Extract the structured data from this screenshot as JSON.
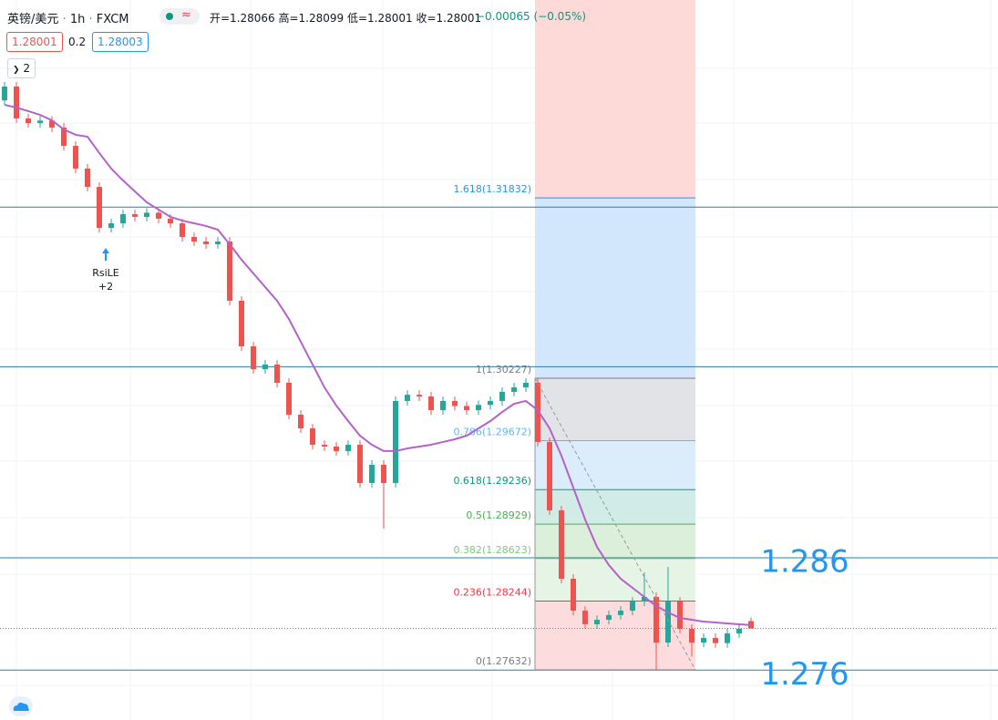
{
  "header": {
    "symbol": "英镑/美元",
    "interval": "1h",
    "source": "FXCM",
    "ohlc": "开=1.28066 高=1.28099 低=1.28001 收=1.28001",
    "change": "−0.00065 (−0.05%)",
    "bid": "1.28001",
    "spread": "0.2",
    "ask": "1.28003",
    "indicator_count": "2"
  },
  "chart_data": {
    "type": "candlestick",
    "open": [
      1.327,
      1.32823,
      1.32539,
      1.32498,
      1.3252,
      1.32458,
      1.32295,
      1.32093,
      1.3193,
      1.31565,
      1.31606,
      1.31687,
      1.31663,
      1.317,
      1.31647,
      1.31606,
      1.31484,
      1.31444,
      1.3142,
      1.31444,
      1.30917,
      1.30511,
      1.30308,
      1.30349,
      1.30187,
      1.29903,
      1.29781,
      1.29635,
      1.29619,
      1.29579,
      1.29635,
      1.29295,
      1.29457,
      1.29295,
      1.30025,
      1.3008,
      1.30065,
      1.29943,
      1.30025,
      1.2998,
      1.29943,
      1.2999,
      1.30025,
      1.30106,
      1.30146,
      1.30187,
      1.2966,
      1.29051,
      1.28443,
      1.28159,
      1.28038,
      1.28078,
      1.2812,
      1.28159,
      1.2824,
      1.28281,
      1.27875,
      1.2824,
      1.27997,
      1.27875,
      1.27916,
      1.2787,
      1.27957,
      1.28066
    ],
    "high": [
      1.32863,
      1.32863,
      1.32579,
      1.3256,
      1.3256,
      1.32498,
      1.32335,
      1.32133,
      1.3197,
      1.31646,
      1.31727,
      1.31727,
      1.3174,
      1.3174,
      1.31687,
      1.31646,
      1.31524,
      1.31484,
      1.31484,
      1.31484,
      1.30957,
      1.30551,
      1.30389,
      1.30389,
      1.30227,
      1.29943,
      1.29821,
      1.29675,
      1.29659,
      1.29675,
      1.29675,
      1.29497,
      1.29497,
      1.30065,
      1.3012,
      1.3012,
      1.30105,
      1.30065,
      1.30065,
      1.3002,
      1.3003,
      1.30065,
      1.30146,
      1.30186,
      1.30227,
      1.30227,
      1.297,
      1.29091,
      1.28483,
      1.28199,
      1.28118,
      1.2816,
      1.28199,
      1.2828,
      1.285,
      1.28321,
      1.2855,
      1.2828,
      1.28037,
      1.27956,
      1.27956,
      1.27997,
      1.28037,
      1.28099
    ],
    "low": [
      1.3266,
      1.32499,
      1.32458,
      1.32458,
      1.32418,
      1.32255,
      1.32053,
      1.3189,
      1.31525,
      1.31525,
      1.31566,
      1.31623,
      1.31623,
      1.31607,
      1.31566,
      1.31444,
      1.31404,
      1.3138,
      1.3138,
      1.30877,
      1.30471,
      1.30268,
      1.30268,
      1.30147,
      1.29863,
      1.29741,
      1.29595,
      1.29579,
      1.29539,
      1.29539,
      1.29255,
      1.29255,
      1.28889,
      1.29255,
      1.29985,
      1.30025,
      1.29903,
      1.29903,
      1.2994,
      1.29903,
      1.29903,
      1.2995,
      1.29985,
      1.30066,
      1.30106,
      1.2962,
      1.29011,
      1.28403,
      1.28119,
      1.27998,
      1.27998,
      1.28038,
      1.2808,
      1.28119,
      1.282,
      1.27632,
      1.27835,
      1.27957,
      1.2775,
      1.27835,
      1.2783,
      1.2783,
      1.27917,
      1.28001
    ],
    "close": [
      1.32823,
      1.32539,
      1.32498,
      1.3252,
      1.32458,
      1.32295,
      1.32093,
      1.3193,
      1.31565,
      1.31606,
      1.31687,
      1.31663,
      1.317,
      1.31647,
      1.31606,
      1.31484,
      1.31444,
      1.3142,
      1.31444,
      1.30917,
      1.30511,
      1.30308,
      1.30349,
      1.30187,
      1.29903,
      1.29781,
      1.29635,
      1.29619,
      1.29579,
      1.29635,
      1.29295,
      1.29457,
      1.29295,
      1.30025,
      1.3008,
      1.30065,
      1.29943,
      1.30025,
      1.2998,
      1.29943,
      1.2999,
      1.30025,
      1.30106,
      1.30146,
      1.30187,
      1.2966,
      1.29051,
      1.28443,
      1.28159,
      1.28038,
      1.28078,
      1.2812,
      1.28159,
      1.2824,
      1.28281,
      1.27875,
      1.2824,
      1.27997,
      1.27875,
      1.27916,
      1.2787,
      1.27957,
      1.27997,
      1.28001
    ],
    "up_color": "#26a69a",
    "down_color": "#ef5350",
    "ylim": [
      1.27186,
      1.33593
    ],
    "moving_average": {
      "color": "#b462c8",
      "values": [
        1.3266,
        1.32636,
        1.32604,
        1.32571,
        1.32522,
        1.32441,
        1.32393,
        1.32376,
        1.32231,
        1.32093,
        1.31987,
        1.3189,
        1.31793,
        1.31728,
        1.31663,
        1.3163,
        1.31606,
        1.31582,
        1.31549,
        1.3142,
        1.31282,
        1.3116,
        1.31038,
        1.30917,
        1.30754,
        1.30552,
        1.30349,
        1.30146,
        1.29984,
        1.29846,
        1.29716,
        1.29635,
        1.29579,
        1.29579,
        1.29603,
        1.29619,
        1.29635,
        1.2966,
        1.29684,
        1.29716,
        1.29781,
        1.29846,
        1.29927,
        1.3,
        1.30025,
        1.29943,
        1.29781,
        1.29538,
        1.29254,
        1.2897,
        1.28727,
        1.28565,
        1.28443,
        1.28362,
        1.28281,
        1.282,
        1.28143,
        1.28094,
        1.28078,
        1.28062,
        1.28054,
        1.28046,
        1.28038,
        1.2803
      ]
    },
    "signal": {
      "label": "RsiLE",
      "count": "+2"
    },
    "fibonacci": {
      "extension_fill": "#fdd9d7",
      "line_color": "#9598a1",
      "levels": [
        {
          "value": 1.31832,
          "label": "1.618(1.31832)",
          "color": "#2196f3",
          "fill": "#d2e7fb"
        },
        {
          "value": 1.30227,
          "label": "1(1.30227)",
          "color": "#787b86",
          "fill": "#e2e3e7"
        },
        {
          "value": 1.29672,
          "label": "0.786(1.29672)",
          "color": "#64b5f6",
          "fill": "#dbecfb"
        },
        {
          "value": 1.29236,
          "label": "0.618(1.29236)",
          "color": "#089981",
          "fill": "#d1ebe6"
        },
        {
          "value": 1.28929,
          "label": "0.5(1.28929)",
          "color": "#4caf50",
          "fill": "#dbefdb"
        },
        {
          "value": 1.28623,
          "label": "0.382(1.28623)",
          "color": "#81c784",
          "fill": "#e5f4e5"
        },
        {
          "value": 1.28244,
          "label": "0.236(1.28244)",
          "color": "#f23645",
          "fill": "#fcdcdc"
        },
        {
          "value": 1.27632,
          "label": "0(1.27632)",
          "color": "#787b86"
        }
      ]
    },
    "hlines": {
      "color": "#1f86b0",
      "values": [
        1.3175,
        1.3033,
        1.2863,
        1.2763
      ]
    },
    "price_labels": {
      "color": "#2196f3",
      "values": [
        1.286,
        1.276
      ]
    }
  }
}
